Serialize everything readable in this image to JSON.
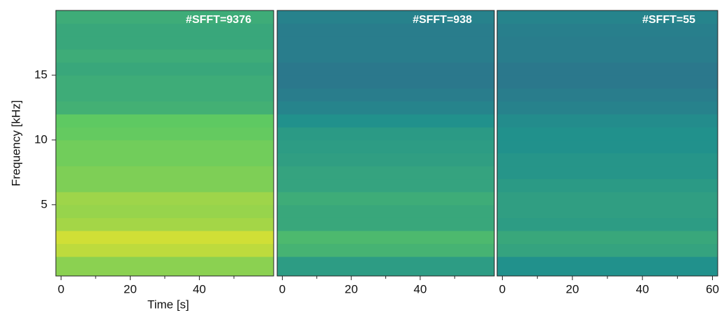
{
  "chart_data": [
    {
      "type": "heatmap",
      "title": "#SFFT=9376",
      "ylabel": "Frequency [kHz]",
      "xlabel": "Time [s]",
      "colormap": "viridis",
      "xlim": [
        -1.5,
        61.5
      ],
      "xticks": [
        0,
        20,
        40
      ],
      "xminorticks": [
        10,
        30,
        50
      ],
      "ylim": [
        -0.5,
        20
      ],
      "yticks": [
        5,
        10,
        15
      ],
      "ybins": [
        -0.5,
        1,
        2,
        3,
        4,
        5,
        6,
        7,
        8,
        9,
        10,
        11,
        12,
        13,
        14,
        15,
        16,
        17,
        18,
        19,
        20
      ],
      "values": [
        0.82,
        0.9,
        0.93,
        0.86,
        0.84,
        0.85,
        0.8,
        0.8,
        0.78,
        0.78,
        0.76,
        0.75,
        0.64,
        0.62,
        0.62,
        0.6,
        0.62,
        0.6,
        0.6,
        0.62
      ]
    },
    {
      "type": "heatmap",
      "title": "#SFFT=938",
      "colormap": "viridis",
      "xlim": [
        -1.5,
        61.5
      ],
      "xticks": [
        0,
        20,
        40
      ],
      "xminorticks": [
        10,
        30,
        50
      ],
      "ylim": [
        -0.5,
        20
      ],
      "ybins": [
        -0.5,
        1,
        2,
        3,
        4,
        5,
        6,
        7,
        8,
        9,
        10,
        11,
        12,
        13,
        14,
        15,
        16,
        17,
        18,
        19,
        20
      ],
      "values": [
        0.55,
        0.65,
        0.68,
        0.6,
        0.6,
        0.62,
        0.58,
        0.58,
        0.56,
        0.55,
        0.54,
        0.5,
        0.45,
        0.42,
        0.4,
        0.4,
        0.42,
        0.42,
        0.42,
        0.44
      ]
    },
    {
      "type": "heatmap",
      "title": "#SFFT=55",
      "colormap": "viridis",
      "xlim": [
        -1.5,
        61.5
      ],
      "xticks": [
        0,
        20,
        40,
        60
      ],
      "xminorticks": [
        10,
        30,
        50
      ],
      "ylim": [
        -0.5,
        20
      ],
      "ybins": [
        -0.5,
        1,
        2,
        3,
        4,
        5,
        6,
        7,
        8,
        9,
        10,
        11,
        12,
        13,
        14,
        15,
        16,
        17,
        18,
        19,
        20
      ],
      "values": [
        0.5,
        0.58,
        0.6,
        0.55,
        0.56,
        0.56,
        0.54,
        0.52,
        0.52,
        0.5,
        0.5,
        0.48,
        0.44,
        0.42,
        0.4,
        0.4,
        0.42,
        0.42,
        0.43,
        0.45
      ]
    }
  ]
}
